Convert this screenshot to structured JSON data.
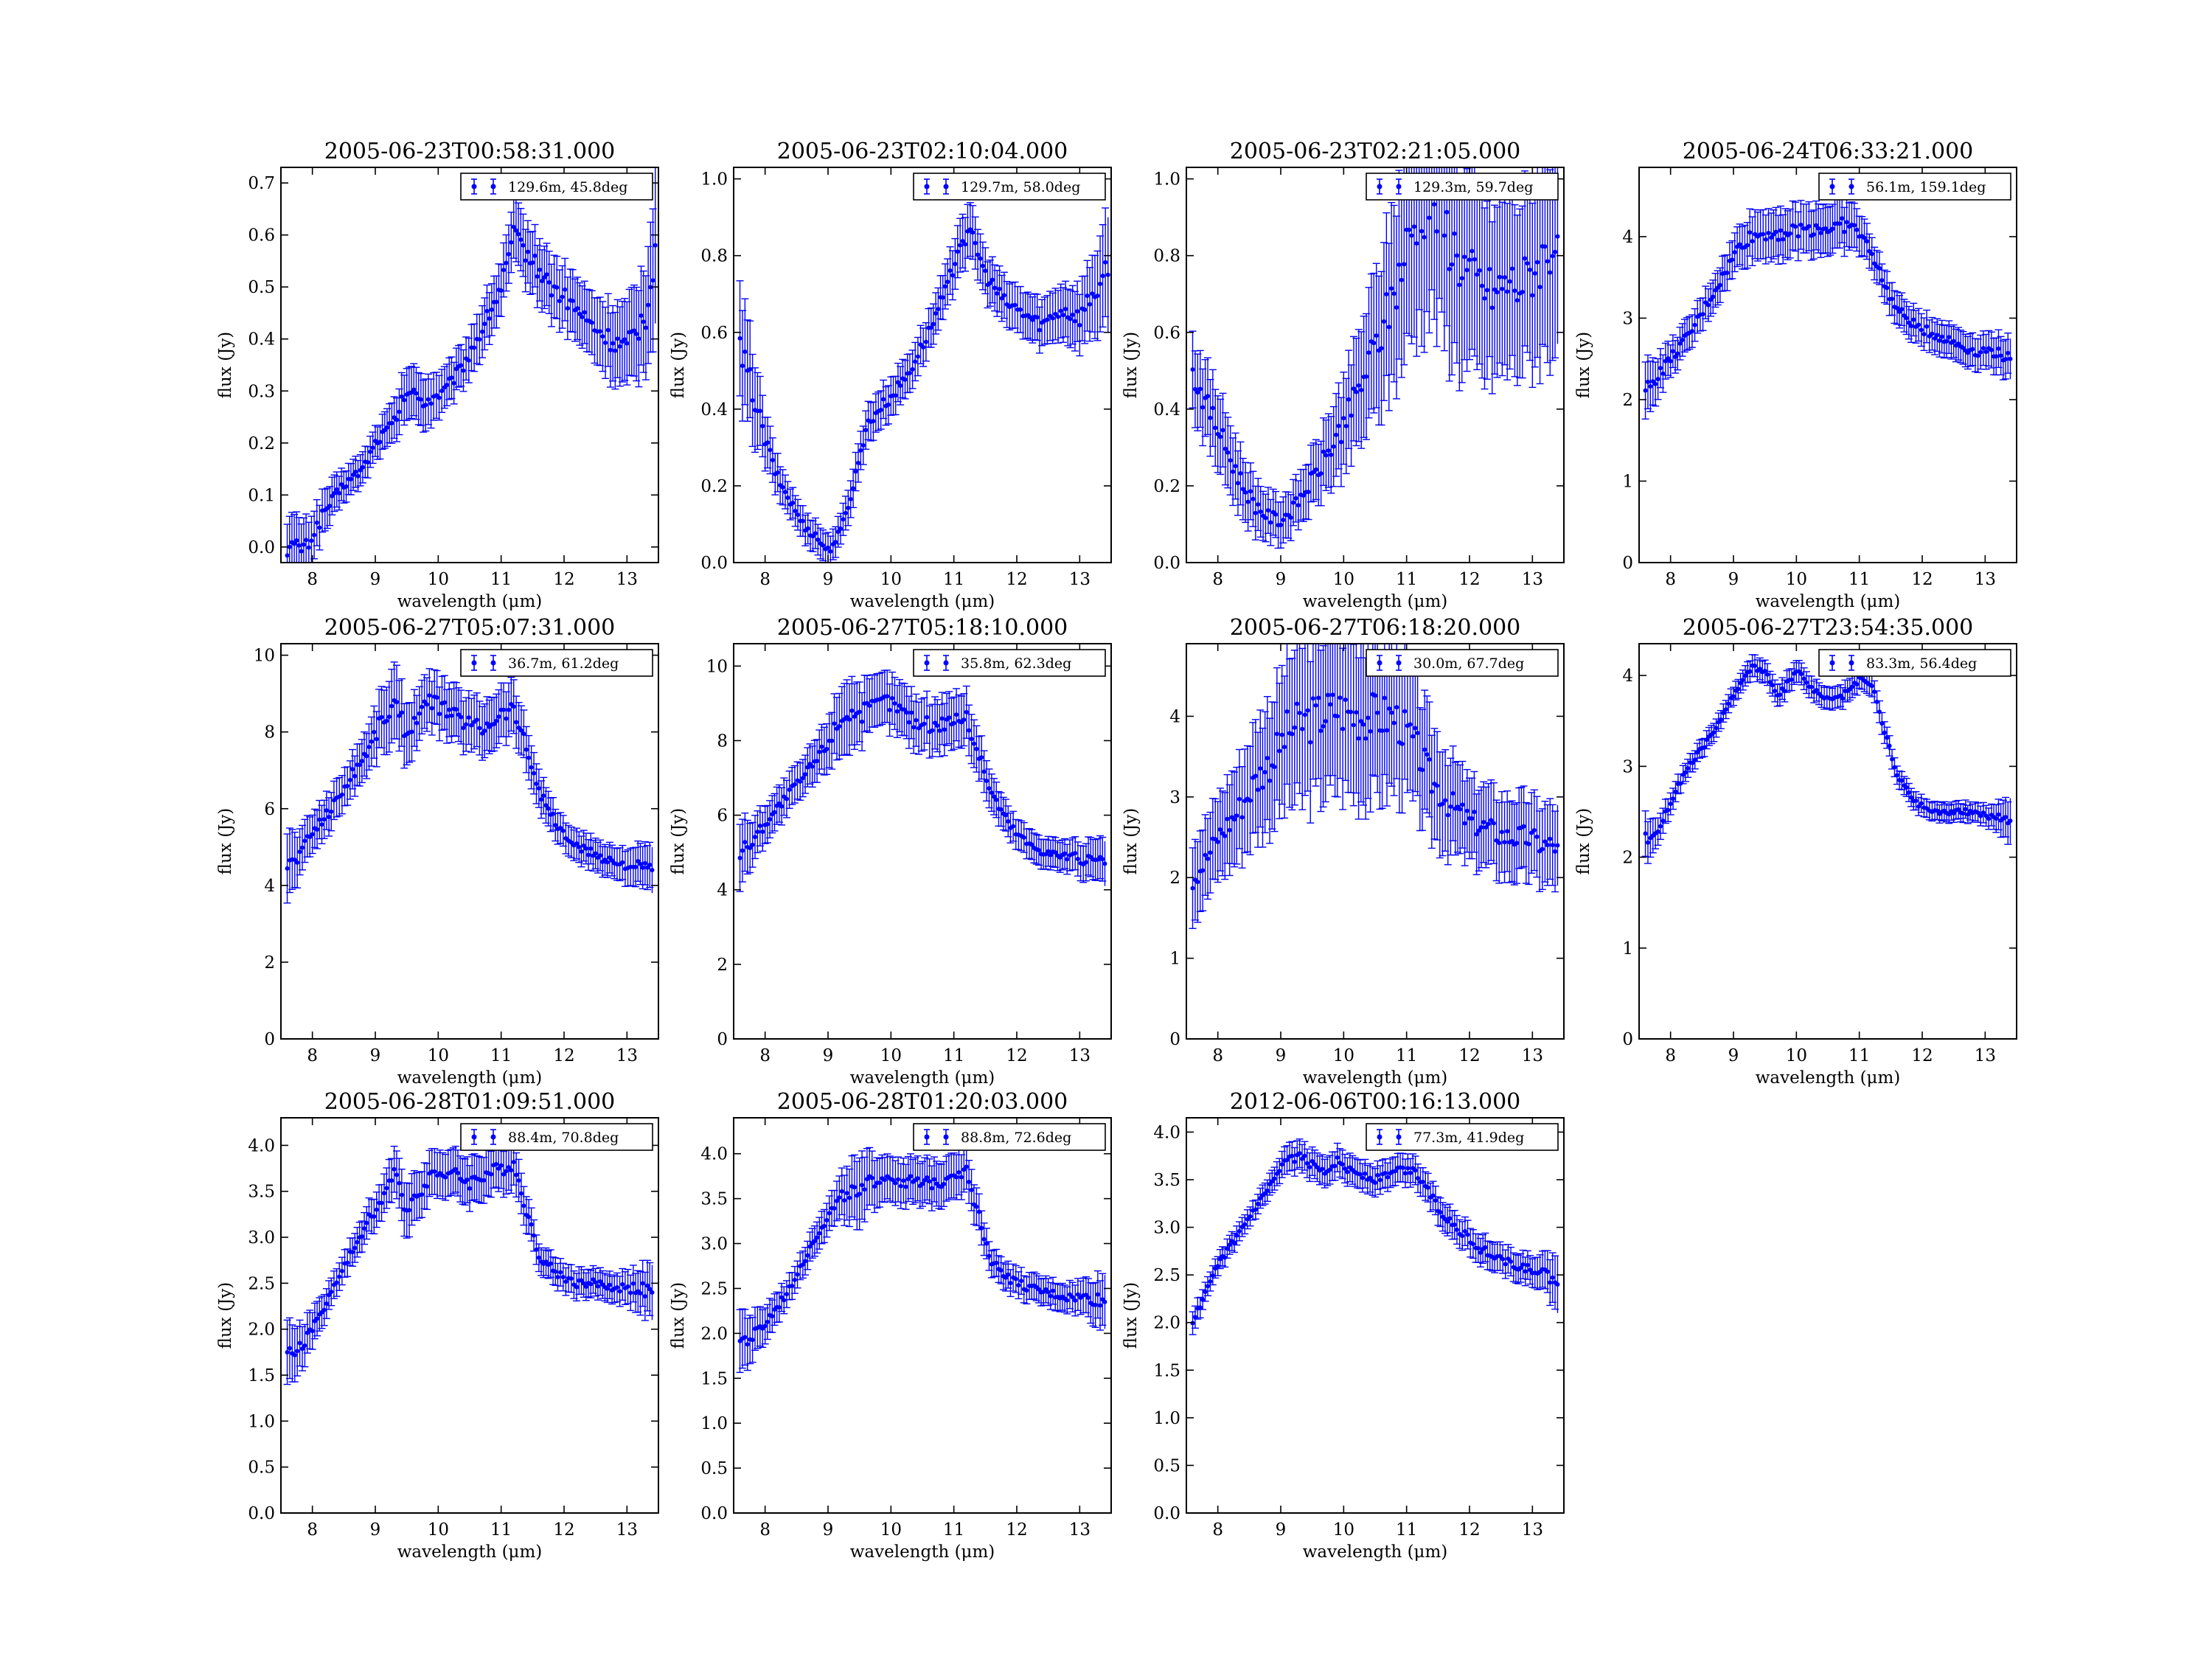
{
  "figure": {
    "series_color": "#0000ff",
    "x_axis_label": "wavelength (μm)",
    "y_axis_label": "flux (Jy)",
    "xlim": [
      7.5,
      13.5
    ],
    "xticks": [
      8,
      9,
      10,
      11,
      12,
      13
    ]
  },
  "chart_data": [
    {
      "type": "scatter",
      "title": "2005-06-23T00:58:31.000",
      "xlabel": "wavelength (μm)",
      "ylabel": "flux (Jy)",
      "xlim": [
        7.5,
        13.5
      ],
      "ylim": [
        -0.03,
        0.73
      ],
      "yticks": [
        0.0,
        0.1,
        0.2,
        0.3,
        0.4,
        0.5,
        0.6,
        0.7
      ],
      "ytick_labels": [
        "0.0",
        "0.1",
        "0.2",
        "0.3",
        "0.4",
        "0.5",
        "0.6",
        "0.7"
      ],
      "legend": "129.6m, 45.8deg",
      "legend_position": "top-right",
      "x": [
        7.6,
        7.9,
        8.2,
        8.5,
        8.8,
        9.0,
        9.3,
        9.5,
        9.8,
        10.1,
        10.4,
        10.7,
        11.0,
        11.2,
        11.5,
        11.8,
        12.1,
        12.4,
        12.7,
        13.0,
        13.3,
        13.45
      ],
      "y": [
        0.0,
        0.0,
        0.07,
        0.12,
        0.15,
        0.2,
        0.24,
        0.3,
        0.28,
        0.3,
        0.35,
        0.42,
        0.5,
        0.6,
        0.55,
        0.5,
        0.47,
        0.43,
        0.4,
        0.38,
        0.45,
        0.58
      ],
      "yerr": [
        0.06,
        0.05,
        0.04,
        0.03,
        0.03,
        0.03,
        0.04,
        0.05,
        0.05,
        0.04,
        0.04,
        0.05,
        0.05,
        0.06,
        0.06,
        0.06,
        0.06,
        0.06,
        0.07,
        0.08,
        0.1,
        0.15
      ]
    },
    {
      "type": "scatter",
      "title": "2005-06-23T02:10:04.000",
      "xlabel": "wavelength (μm)",
      "ylabel": "flux (Jy)",
      "xlim": [
        7.5,
        13.5
      ],
      "ylim": [
        0.0,
        1.03
      ],
      "yticks": [
        0.0,
        0.2,
        0.4,
        0.6,
        0.8,
        1.0
      ],
      "ytick_labels": [
        "0.0",
        "0.2",
        "0.4",
        "0.6",
        "0.8",
        "1.0"
      ],
      "legend": "129.7m, 58.0deg",
      "legend_position": "top-right",
      "x": [
        7.6,
        7.8,
        8.0,
        8.2,
        8.4,
        8.6,
        8.8,
        9.0,
        9.2,
        9.4,
        9.6,
        9.8,
        10.0,
        10.3,
        10.6,
        10.9,
        11.1,
        11.3,
        11.5,
        11.8,
        12.1,
        12.4,
        12.7,
        13.0,
        13.2,
        13.45
      ],
      "y": [
        0.55,
        0.45,
        0.32,
        0.22,
        0.16,
        0.1,
        0.07,
        0.03,
        0.08,
        0.2,
        0.35,
        0.4,
        0.43,
        0.5,
        0.6,
        0.72,
        0.84,
        0.85,
        0.75,
        0.68,
        0.65,
        0.62,
        0.66,
        0.64,
        0.7,
        0.75
      ],
      "yerr": [
        0.15,
        0.12,
        0.07,
        0.05,
        0.04,
        0.04,
        0.04,
        0.04,
        0.04,
        0.05,
        0.05,
        0.05,
        0.05,
        0.05,
        0.05,
        0.06,
        0.07,
        0.07,
        0.06,
        0.06,
        0.06,
        0.06,
        0.07,
        0.08,
        0.1,
        0.15
      ]
    },
    {
      "type": "scatter",
      "title": "2005-06-23T02:21:05.000",
      "xlabel": "wavelength (μm)",
      "ylabel": "flux (Jy)",
      "xlim": [
        7.5,
        13.5
      ],
      "ylim": [
        0.0,
        1.03
      ],
      "yticks": [
        0.0,
        0.2,
        0.4,
        0.6,
        0.8,
        1.0
      ],
      "ytick_labels": [
        "0.0",
        "0.2",
        "0.4",
        "0.6",
        "0.8",
        "1.0"
      ],
      "legend": "129.3m, 59.7deg",
      "legend_position": "top-right",
      "x": [
        7.6,
        7.8,
        8.0,
        8.2,
        8.4,
        8.6,
        8.8,
        9.0,
        9.2,
        9.4,
        9.6,
        9.8,
        10.0,
        10.2,
        10.4,
        10.6,
        10.8,
        11.0,
        11.2,
        11.4,
        11.6,
        11.8,
        12.0,
        12.2,
        12.4,
        12.6,
        12.8,
        13.0,
        13.2,
        13.4
      ],
      "y": [
        0.49,
        0.42,
        0.35,
        0.27,
        0.2,
        0.15,
        0.12,
        0.11,
        0.14,
        0.19,
        0.24,
        0.3,
        0.36,
        0.43,
        0.52,
        0.6,
        0.7,
        0.82,
        0.92,
        0.95,
        0.88,
        0.8,
        0.75,
        0.72,
        0.7,
        0.73,
        0.72,
        0.76,
        0.8,
        0.85
      ],
      "yerr": [
        0.1,
        0.1,
        0.1,
        0.09,
        0.08,
        0.07,
        0.06,
        0.06,
        0.06,
        0.07,
        0.08,
        0.1,
        0.12,
        0.14,
        0.17,
        0.2,
        0.23,
        0.27,
        0.3,
        0.3,
        0.3,
        0.28,
        0.26,
        0.24,
        0.22,
        0.23,
        0.22,
        0.24,
        0.26,
        0.28
      ]
    },
    {
      "type": "scatter",
      "title": "2005-06-24T06:33:21.000",
      "xlabel": "wavelength (μm)",
      "ylabel": "flux (Jy)",
      "xlim": [
        7.5,
        13.5
      ],
      "ylim": [
        0,
        4.85
      ],
      "yticks": [
        0,
        1,
        2,
        3,
        4
      ],
      "ytick_labels": [
        "0",
        "1",
        "2",
        "3",
        "4"
      ],
      "legend": "56.1m, 159.1deg",
      "legend_position": "top-right",
      "x": [
        7.6,
        7.8,
        8.0,
        8.3,
        8.6,
        8.9,
        9.1,
        9.3,
        9.6,
        9.9,
        10.2,
        10.5,
        10.8,
        11.0,
        11.2,
        11.4,
        11.6,
        11.9,
        12.2,
        12.5,
        12.8,
        13.1,
        13.4
      ],
      "y": [
        2.1,
        2.3,
        2.5,
        2.8,
        3.2,
        3.6,
        3.9,
        4.0,
        4.05,
        4.05,
        4.1,
        4.1,
        4.15,
        4.05,
        3.8,
        3.4,
        3.1,
        2.9,
        2.8,
        2.7,
        2.6,
        2.6,
        2.5
      ],
      "yerr": [
        0.35,
        0.25,
        0.2,
        0.2,
        0.2,
        0.22,
        0.25,
        0.3,
        0.3,
        0.3,
        0.3,
        0.3,
        0.3,
        0.25,
        0.2,
        0.2,
        0.2,
        0.2,
        0.2,
        0.2,
        0.2,
        0.22,
        0.25
      ]
    },
    {
      "type": "scatter",
      "title": "2005-06-27T05:07:31.000",
      "xlabel": "wavelength (μm)",
      "ylabel": "flux (Jy)",
      "xlim": [
        7.5,
        13.5
      ],
      "ylim": [
        0,
        10.3
      ],
      "yticks": [
        0,
        2,
        4,
        6,
        8,
        10
      ],
      "ytick_labels": [
        "0",
        "2",
        "4",
        "6",
        "8",
        "10"
      ],
      "legend": "36.7m, 61.2deg",
      "legend_position": "top-right",
      "x": [
        7.6,
        7.8,
        8.0,
        8.3,
        8.6,
        8.9,
        9.1,
        9.3,
        9.5,
        9.7,
        9.9,
        10.1,
        10.4,
        10.7,
        11.0,
        11.2,
        11.4,
        11.6,
        11.9,
        12.2,
        12.5,
        12.8,
        13.1,
        13.4
      ],
      "y": [
        4.5,
        4.8,
        5.4,
        6.0,
        6.8,
        7.6,
        8.3,
        8.7,
        8.0,
        8.5,
        8.8,
        8.6,
        8.3,
        8.1,
        8.5,
        8.6,
        7.6,
        6.5,
        5.5,
        5.0,
        4.8,
        4.6,
        4.5,
        4.4
      ],
      "yerr": [
        0.9,
        0.6,
        0.5,
        0.5,
        0.5,
        0.6,
        0.8,
        1.0,
        0.8,
        0.7,
        0.7,
        0.7,
        0.7,
        0.7,
        0.7,
        0.7,
        0.6,
        0.5,
        0.4,
        0.4,
        0.4,
        0.4,
        0.5,
        0.6
      ]
    },
    {
      "type": "scatter",
      "title": "2005-06-27T05:18:10.000",
      "xlabel": "wavelength (μm)",
      "ylabel": "flux (Jy)",
      "xlim": [
        7.5,
        13.5
      ],
      "ylim": [
        0,
        10.6
      ],
      "yticks": [
        0,
        2,
        4,
        6,
        8,
        10
      ],
      "ytick_labels": [
        "0",
        "2",
        "4",
        "6",
        "8",
        "10"
      ],
      "legend": "35.8m, 62.3deg",
      "legend_position": "top-right",
      "x": [
        7.6,
        7.8,
        8.0,
        8.3,
        8.6,
        8.9,
        9.1,
        9.3,
        9.5,
        9.7,
        9.9,
        10.1,
        10.4,
        10.7,
        11.0,
        11.2,
        11.4,
        11.6,
        11.9,
        12.2,
        12.5,
        12.8,
        13.1,
        13.4
      ],
      "y": [
        5.0,
        5.3,
        5.8,
        6.4,
        7.0,
        7.7,
        8.3,
        8.8,
        8.7,
        8.9,
        9.1,
        8.9,
        8.5,
        8.4,
        8.6,
        8.6,
        7.6,
        6.6,
        5.7,
        5.2,
        5.0,
        4.9,
        4.8,
        4.7
      ],
      "yerr": [
        0.9,
        0.6,
        0.5,
        0.5,
        0.5,
        0.6,
        0.8,
        1.0,
        0.8,
        0.7,
        0.7,
        0.7,
        0.7,
        0.7,
        0.7,
        0.7,
        0.6,
        0.5,
        0.4,
        0.4,
        0.4,
        0.4,
        0.5,
        0.6
      ]
    },
    {
      "type": "scatter",
      "title": "2005-06-27T06:18:20.000",
      "xlabel": "wavelength (μm)",
      "ylabel": "flux (Jy)",
      "xlim": [
        7.5,
        13.5
      ],
      "ylim": [
        0,
        4.9
      ],
      "yticks": [
        0,
        1,
        2,
        3,
        4
      ],
      "ytick_labels": [
        "0",
        "1",
        "2",
        "3",
        "4"
      ],
      "legend": "30.0m, 67.7deg",
      "legend_position": "top-right",
      "x": [
        7.6,
        7.8,
        8.0,
        8.3,
        8.6,
        8.9,
        9.1,
        9.3,
        9.6,
        9.9,
        10.2,
        10.5,
        10.8,
        11.1,
        11.4,
        11.7,
        12.0,
        12.3,
        12.6,
        12.9,
        13.2,
        13.4
      ],
      "y": [
        2.0,
        2.2,
        2.5,
        2.8,
        3.2,
        3.5,
        3.8,
        3.9,
        4.0,
        4.1,
        4.0,
        4.0,
        4.0,
        3.7,
        3.2,
        2.9,
        2.7,
        2.6,
        2.5,
        2.5,
        2.4,
        2.4
      ],
      "yerr": [
        0.5,
        0.5,
        0.5,
        0.6,
        0.7,
        0.8,
        0.9,
        1.0,
        1.0,
        1.0,
        1.0,
        1.0,
        0.9,
        0.8,
        0.7,
        0.6,
        0.5,
        0.5,
        0.5,
        0.5,
        0.5,
        0.5
      ]
    },
    {
      "type": "scatter",
      "title": "2005-06-27T23:54:35.000",
      "xlabel": "wavelength (μm)",
      "ylabel": "flux (Jy)",
      "xlim": [
        7.5,
        13.5
      ],
      "ylim": [
        0,
        4.35
      ],
      "yticks": [
        0,
        1,
        2,
        3,
        4
      ],
      "ytick_labels": [
        "0",
        "1",
        "2",
        "3",
        "4"
      ],
      "legend": "83.3m, 56.4deg",
      "legend_position": "top-right",
      "x": [
        7.6,
        7.8,
        8.0,
        8.2,
        8.5,
        8.8,
        9.0,
        9.3,
        9.5,
        9.7,
        10.0,
        10.2,
        10.4,
        10.7,
        11.0,
        11.2,
        11.4,
        11.6,
        11.9,
        12.2,
        12.5,
        12.8,
        13.1,
        13.4
      ],
      "y": [
        2.2,
        2.3,
        2.6,
        2.9,
        3.2,
        3.5,
        3.8,
        4.1,
        4.05,
        3.75,
        4.05,
        3.9,
        3.75,
        3.75,
        3.95,
        3.9,
        3.4,
        2.9,
        2.6,
        2.5,
        2.5,
        2.5,
        2.45,
        2.4
      ],
      "yerr": [
        0.25,
        0.15,
        0.12,
        0.1,
        0.1,
        0.1,
        0.1,
        0.12,
        0.12,
        0.12,
        0.12,
        0.12,
        0.12,
        0.12,
        0.12,
        0.12,
        0.12,
        0.1,
        0.1,
        0.1,
        0.1,
        0.1,
        0.12,
        0.25
      ]
    },
    {
      "type": "scatter",
      "title": "2005-06-28T01:09:51.000",
      "xlabel": "wavelength (μm)",
      "ylabel": "flux (Jy)",
      "xlim": [
        7.5,
        13.5
      ],
      "ylim": [
        0.0,
        4.3
      ],
      "yticks": [
        0.0,
        0.5,
        1.0,
        1.5,
        2.0,
        2.5,
        3.0,
        3.5,
        4.0
      ],
      "ytick_labels": [
        "0.0",
        "0.5",
        "1.0",
        "1.5",
        "2.0",
        "2.5",
        "3.0",
        "3.5",
        "4.0"
      ],
      "legend": "88.4m, 70.8deg",
      "legend_position": "top-right",
      "x": [
        7.6,
        7.8,
        8.0,
        8.3,
        8.6,
        8.9,
        9.1,
        9.3,
        9.5,
        9.7,
        9.9,
        10.2,
        10.5,
        10.8,
        11.0,
        11.2,
        11.4,
        11.6,
        11.9,
        12.2,
        12.5,
        12.8,
        13.1,
        13.4
      ],
      "y": [
        1.7,
        1.8,
        2.0,
        2.4,
        2.8,
        3.2,
        3.4,
        3.7,
        3.3,
        3.5,
        3.7,
        3.7,
        3.6,
        3.7,
        3.75,
        3.8,
        3.3,
        2.8,
        2.6,
        2.5,
        2.5,
        2.45,
        2.45,
        2.4
      ],
      "yerr": [
        0.35,
        0.25,
        0.2,
        0.15,
        0.15,
        0.18,
        0.2,
        0.25,
        0.3,
        0.25,
        0.25,
        0.25,
        0.25,
        0.25,
        0.25,
        0.25,
        0.2,
        0.15,
        0.15,
        0.15,
        0.15,
        0.15,
        0.2,
        0.3
      ]
    },
    {
      "type": "scatter",
      "title": "2005-06-28T01:20:03.000",
      "xlabel": "wavelength (μm)",
      "ylabel": "flux (Jy)",
      "xlim": [
        7.5,
        13.5
      ],
      "ylim": [
        0.0,
        4.4
      ],
      "yticks": [
        0.0,
        0.5,
        1.0,
        1.5,
        2.0,
        2.5,
        3.0,
        3.5,
        4.0
      ],
      "ytick_labels": [
        "0.0",
        "0.5",
        "1.0",
        "1.5",
        "2.0",
        "2.5",
        "3.0",
        "3.5",
        "4.0"
      ],
      "legend": "88.8m, 72.6deg",
      "legend_position": "top-right",
      "x": [
        7.6,
        7.8,
        8.0,
        8.3,
        8.6,
        8.9,
        9.1,
        9.3,
        9.5,
        9.7,
        9.9,
        10.2,
        10.5,
        10.8,
        11.0,
        11.2,
        11.4,
        11.6,
        11.9,
        12.2,
        12.5,
        12.8,
        13.1,
        13.4
      ],
      "y": [
        1.9,
        1.95,
        2.1,
        2.4,
        2.8,
        3.2,
        3.4,
        3.6,
        3.5,
        3.7,
        3.75,
        3.7,
        3.65,
        3.7,
        3.8,
        3.8,
        3.3,
        2.8,
        2.6,
        2.5,
        2.45,
        2.4,
        2.4,
        2.35
      ],
      "yerr": [
        0.35,
        0.25,
        0.2,
        0.15,
        0.15,
        0.18,
        0.2,
        0.3,
        0.4,
        0.3,
        0.25,
        0.25,
        0.25,
        0.25,
        0.25,
        0.25,
        0.2,
        0.15,
        0.15,
        0.15,
        0.15,
        0.15,
        0.2,
        0.3
      ]
    },
    {
      "type": "scatter",
      "title": "2012-06-06T00:16:13.000",
      "xlabel": "wavelength (μm)",
      "ylabel": "flux (Jy)",
      "xlim": [
        7.5,
        13.5
      ],
      "ylim": [
        0.0,
        4.15
      ],
      "yticks": [
        0.0,
        0.5,
        1.0,
        1.5,
        2.0,
        2.5,
        3.0,
        3.5,
        4.0
      ],
      "ytick_labels": [
        "0.0",
        "0.5",
        "1.0",
        "1.5",
        "2.0",
        "2.5",
        "3.0",
        "3.5",
        "4.0"
      ],
      "legend": "77.3m, 41.9deg",
      "legend_position": "top-right",
      "x": [
        7.6,
        7.8,
        8.0,
        8.3,
        8.6,
        8.9,
        9.1,
        9.3,
        9.5,
        9.7,
        9.9,
        10.1,
        10.3,
        10.5,
        10.7,
        10.9,
        11.1,
        11.3,
        11.5,
        11.8,
        12.1,
        12.4,
        12.7,
        13.0,
        13.2,
        13.4
      ],
      "y": [
        2.0,
        2.3,
        2.6,
        2.9,
        3.2,
        3.5,
        3.7,
        3.75,
        3.65,
        3.6,
        3.7,
        3.6,
        3.55,
        3.5,
        3.55,
        3.6,
        3.6,
        3.45,
        3.2,
        3.0,
        2.8,
        2.7,
        2.6,
        2.55,
        2.5,
        2.4
      ],
      "yerr": [
        0.12,
        0.1,
        0.1,
        0.1,
        0.1,
        0.12,
        0.15,
        0.15,
        0.15,
        0.15,
        0.15,
        0.15,
        0.15,
        0.15,
        0.15,
        0.15,
        0.15,
        0.15,
        0.15,
        0.15,
        0.15,
        0.15,
        0.15,
        0.15,
        0.2,
        0.3
      ]
    }
  ]
}
